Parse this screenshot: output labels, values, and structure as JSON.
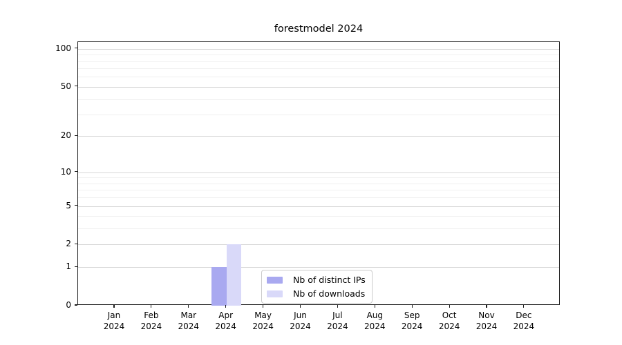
{
  "chart_data": {
    "type": "bar",
    "title": "forestmodel 2024",
    "background": "#ffffff",
    "x_axis": {
      "categories": [
        "Jan",
        "Feb",
        "Mar",
        "Apr",
        "May",
        "Jun",
        "Jul",
        "Aug",
        "Sep",
        "Oct",
        "Nov",
        "Dec"
      ],
      "year_label": "2024"
    },
    "y_axis": {
      "scale": "log1p",
      "tick_labels": [
        0,
        1,
        2,
        5,
        10,
        20,
        50,
        100
      ],
      "minor_gridlines": [
        3,
        4,
        6,
        7,
        8,
        9,
        30,
        40,
        60,
        70,
        80,
        90
      ],
      "ylim": [
        0,
        113
      ]
    },
    "series": [
      {
        "name": "Nb of distinct IPs",
        "color": "#a9a9f0",
        "values": [
          0,
          0,
          0,
          1,
          0,
          0,
          0,
          0,
          0,
          0,
          0,
          0
        ]
      },
      {
        "name": "Nb of downloads",
        "color": "#d9d9f9",
        "values": [
          0,
          0,
          0,
          2,
          0,
          0,
          0,
          0,
          0,
          0,
          0,
          0
        ]
      }
    ],
    "legend": {
      "position": "lower center"
    },
    "grid": true
  }
}
